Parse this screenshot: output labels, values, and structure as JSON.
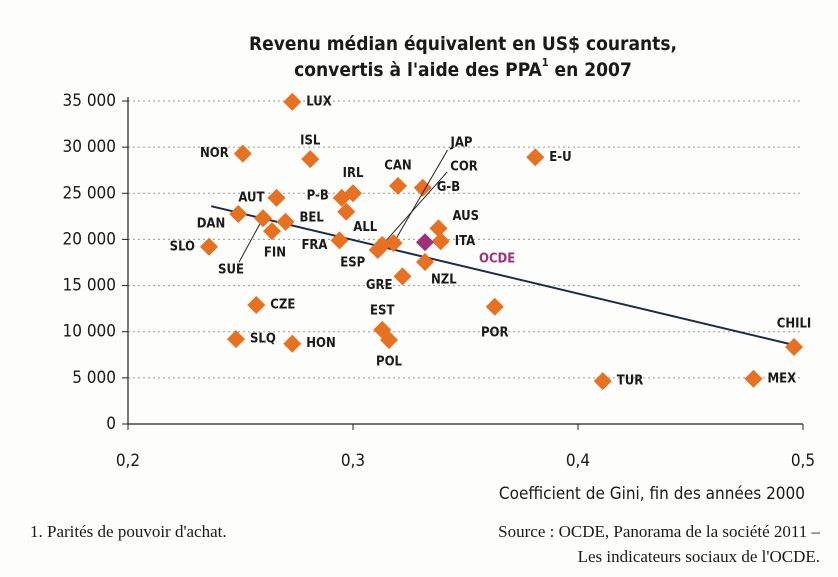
{
  "chart_data": {
    "type": "scatter",
    "title": [
      "Revenu médian  équivalent en US$ courants,",
      "convertis à l'aide des PPA",
      "1",
      " en 2007"
    ],
    "xlabel": "Coefficient de Gini, fin des années 2000",
    "footnote": "1. Parités de pouvoir d'achat.",
    "source": [
      "Source : OCDE, Panorama de la société 2011 –",
      "Les indicateurs sociaux de l'OCDE."
    ],
    "names": [
      "LUX",
      "NOR",
      "ISL",
      "E-U",
      "CAN",
      "G-B",
      "IRL",
      "P-B",
      "AUT",
      "ALL",
      "DAN",
      "SUE",
      "BEL",
      "FIN",
      "AUS",
      "ITA",
      "OCDE",
      "JAP",
      "COR",
      "ESP",
      "FRA",
      "SLO",
      "NZL",
      "GRE",
      "CZE",
      "POR",
      "EST",
      "POL",
      "SLQ",
      "HON",
      "TUR",
      "MEX",
      "CHILI"
    ],
    "x": [
      0.273,
      0.251,
      0.281,
      0.381,
      0.32,
      0.331,
      0.3,
      0.295,
      0.266,
      0.297,
      0.249,
      0.26,
      0.27,
      0.264,
      0.338,
      0.339,
      0.332,
      0.318,
      0.313,
      0.311,
      0.294,
      0.236,
      0.332,
      0.322,
      0.257,
      0.363,
      0.313,
      0.316,
      0.248,
      0.273,
      0.411,
      0.478,
      0.496
    ],
    "y": [
      34900,
      29300,
      28700,
      28900,
      25800,
      25600,
      25000,
      24500,
      24500,
      23000,
      22750,
      22300,
      21900,
      20900,
      21200,
      19800,
      19700,
      19600,
      19400,
      18850,
      19900,
      19200,
      17550,
      16000,
      12900,
      12700,
      10200,
      9100,
      9200,
      8700,
      4650,
      4900,
      8350
    ],
    "colors": [
      "#e8701e",
      "#e8701e",
      "#e8701e",
      "#e8701e",
      "#e8701e",
      "#e8701e",
      "#e8701e",
      "#e8701e",
      "#e8701e",
      "#e8701e",
      "#e8701e",
      "#e8701e",
      "#e8701e",
      "#e8701e",
      "#e8701e",
      "#e8701e",
      "#a0307a",
      "#e8701e",
      "#e8701e",
      "#e8701e",
      "#e8701e",
      "#e8701e",
      "#e8701e",
      "#e8701e",
      "#e8701e",
      "#e8701e",
      "#e8701e",
      "#e8701e",
      "#e8701e",
      "#e8701e",
      "#e8701e",
      "#e8701e",
      "#e8701e"
    ],
    "trend_line": {
      "x": [
        0.237,
        0.496
      ],
      "y": [
        23600,
        8560
      ],
      "color": "#1a2a4a"
    },
    "xlim": [
      0.2,
      0.5
    ],
    "xticks": [
      {
        "value": 0.2,
        "label": "0,2"
      },
      {
        "value": 0.3,
        "label": "0,3"
      },
      {
        "value": 0.4,
        "label": "0,4"
      },
      {
        "value": 0.5,
        "label": "0,5"
      }
    ],
    "ylim": [
      0,
      35000
    ],
    "yticks": [
      0,
      {
        "value": 5000,
        "label": "5 000"
      },
      {
        "value": 10000,
        "label": "10 000"
      },
      {
        "value": 15000,
        "label": "15 000"
      },
      {
        "value": 20000,
        "label": "20 000"
      },
      {
        "value": 25000,
        "label": "25 000"
      },
      {
        "value": 30000,
        "label": "30 000"
      },
      {
        "value": 35000,
        "label": "35 000"
      }
    ],
    "grid": true
  }
}
